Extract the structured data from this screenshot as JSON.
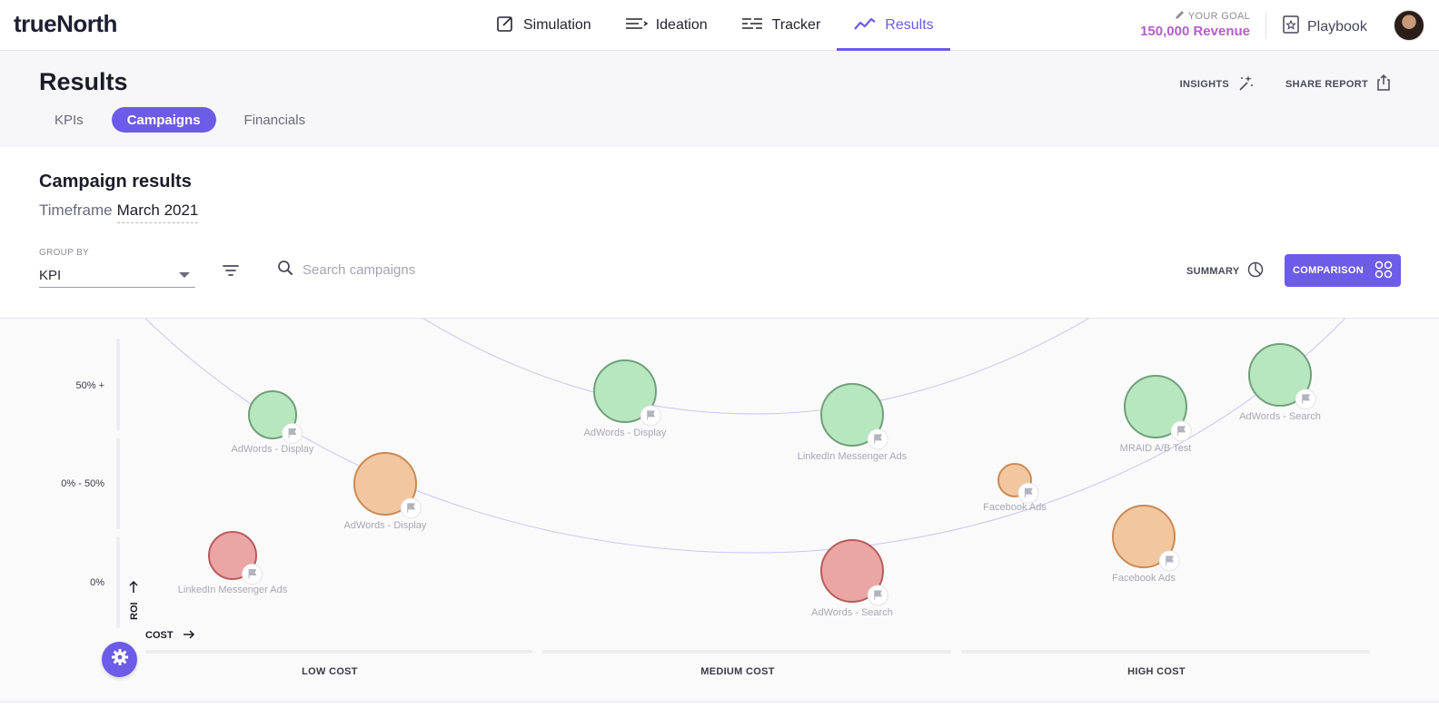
{
  "app": {
    "name": "trueNorth"
  },
  "nav": {
    "items": [
      {
        "label": "Simulation",
        "icon": "edit-square-icon"
      },
      {
        "label": "Ideation",
        "icon": "list-lines-icon"
      },
      {
        "label": "Tracker",
        "icon": "tracker-icon"
      },
      {
        "label": "Results",
        "icon": "trend-line-icon",
        "active": true
      }
    ]
  },
  "goal": {
    "label": "YOUR GOAL",
    "value": "150,000 Revenue",
    "icon": "pencil-icon"
  },
  "playbook": {
    "label": "Playbook",
    "icon": "book-star-icon"
  },
  "page": {
    "title": "Results"
  },
  "tabs": [
    {
      "label": "KPIs",
      "active": false
    },
    {
      "label": "Campaigns",
      "active": true
    },
    {
      "label": "Financials",
      "active": false
    }
  ],
  "header_actions": {
    "insights": "INSIGHTS",
    "share": "SHARE REPORT"
  },
  "campaign_results": {
    "title": "Campaign results",
    "timeframe_label": "Timeframe",
    "timeframe_value": "March 2021"
  },
  "controls": {
    "group_by_label": "GROUP BY",
    "group_by_value": "KPI",
    "search_placeholder": "Search campaigns",
    "summary_label": "SUMMARY",
    "comparison_label": "COMPARISON"
  },
  "colors": {
    "accent": "#6c5ce7",
    "goal": "#b05fc7",
    "green_fill": "#b8e6bf",
    "green_stroke": "#6fa07a",
    "orange_fill": "#f2c7a0",
    "orange_stroke": "#c98a55",
    "red_fill": "#eba5a3",
    "red_stroke": "#b85c5c"
  },
  "chart_data": {
    "type": "scatter",
    "xlabel": "COST",
    "ylabel": "ROI",
    "x_categories": [
      "LOW COST",
      "MEDIUM COST",
      "HIGH COST"
    ],
    "y_categories": [
      "0%",
      "0% - 50%",
      "50% +"
    ],
    "points": [
      {
        "name": "AdWords - Display",
        "cost": "LOW COST",
        "roi": "50% +",
        "status": "green",
        "size": 1
      },
      {
        "name": "AdWords - Display",
        "cost": "LOW COST",
        "roi": "0% - 50%",
        "status": "orange",
        "size": 2
      },
      {
        "name": "LinkedIn Messenger Ads",
        "cost": "LOW COST",
        "roi": "0%",
        "status": "red",
        "size": 1
      },
      {
        "name": "AdWords - Display",
        "cost": "MEDIUM COST",
        "roi": "50% +",
        "status": "green",
        "size": 2
      },
      {
        "name": "LinkedIn Messenger Ads",
        "cost": "MEDIUM COST",
        "roi": "50% +",
        "status": "green",
        "size": 2
      },
      {
        "name": "AdWords - Search",
        "cost": "MEDIUM COST",
        "roi": "0%",
        "status": "red",
        "size": 2
      },
      {
        "name": "MRAID A/B Test",
        "cost": "HIGH COST",
        "roi": "50% +",
        "status": "green",
        "size": 2
      },
      {
        "name": "AdWords - Search",
        "cost": "HIGH COST",
        "roi": "50% +",
        "status": "green",
        "size": 2
      },
      {
        "name": "Facebook Ads",
        "cost": "HIGH COST",
        "roi": "0% - 50%",
        "status": "orange",
        "size": 0
      },
      {
        "name": "Facebook Ads",
        "cost": "HIGH COST",
        "roi": "0% - 50%",
        "status": "orange",
        "size": 2
      }
    ],
    "grid": false,
    "legend": "none"
  }
}
